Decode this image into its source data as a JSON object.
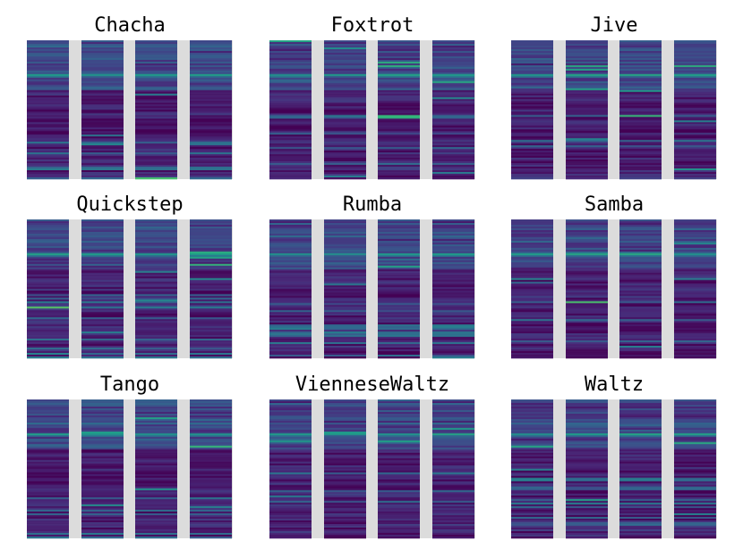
{
  "chart_data": [
    {
      "type": "heatmap",
      "title": "Chacha"
    },
    {
      "type": "heatmap",
      "title": "Foxtrot"
    },
    {
      "type": "heatmap",
      "title": "Jive"
    },
    {
      "type": "heatmap",
      "title": "Quickstep"
    },
    {
      "type": "heatmap",
      "title": "Rumba"
    },
    {
      "type": "heatmap",
      "title": "Samba"
    },
    {
      "type": "heatmap",
      "title": "Tango"
    },
    {
      "type": "heatmap",
      "title": "VienneseWaltz"
    },
    {
      "type": "heatmap",
      "title": "Waltz"
    }
  ]
}
